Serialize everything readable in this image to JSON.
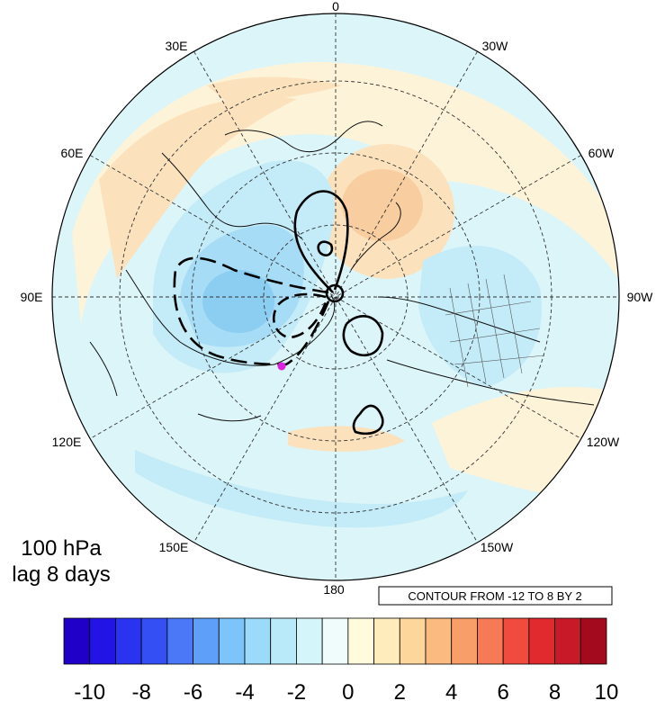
{
  "panel": {
    "level": "100 hPa",
    "lag": "lag 8 days"
  },
  "contour_info": "CONTOUR FROM -12 TO 8 BY 2",
  "longitude_labels": {
    "top": "0",
    "top_right": "30W",
    "right_upper": "60W",
    "right": "90W",
    "right_lower": "120W",
    "bottom_right": "150W",
    "bottom": "180",
    "bottom_left": "150E",
    "left_lower": "120E",
    "left": "90E",
    "left_upper": "60E",
    "top_left": "30E"
  },
  "colorbar": {
    "labels": [
      "-10",
      "-8",
      "-6",
      "-4",
      "-2",
      "0",
      "2",
      "4",
      "6",
      "8",
      "10"
    ],
    "colors": [
      "#2000c8",
      "#2314e6",
      "#2a33f0",
      "#3450f5",
      "#4a78f7",
      "#5ea0f8",
      "#7cc4f9",
      "#9bdaf9",
      "#b8eaf9",
      "#d4f6fa",
      "#f0fcfc",
      "#fffbdc",
      "#feecbd",
      "#fdd69c",
      "#fbbb80",
      "#f89e69",
      "#f57a55",
      "#f04b3d",
      "#e02a2e",
      "#c71a28",
      "#a30a1e"
    ]
  },
  "marker": {
    "color": "#e020e0"
  },
  "fill_colors": {
    "background": "#dcf5f9",
    "weak_positive": "#fdf3d8",
    "positive": "#fbe2bd",
    "strong_positive": "#f8cd9f",
    "weak_negative": "#c3ebf8",
    "negative": "#a6dcf5",
    "strong_negative": "#8ccdf2"
  }
}
